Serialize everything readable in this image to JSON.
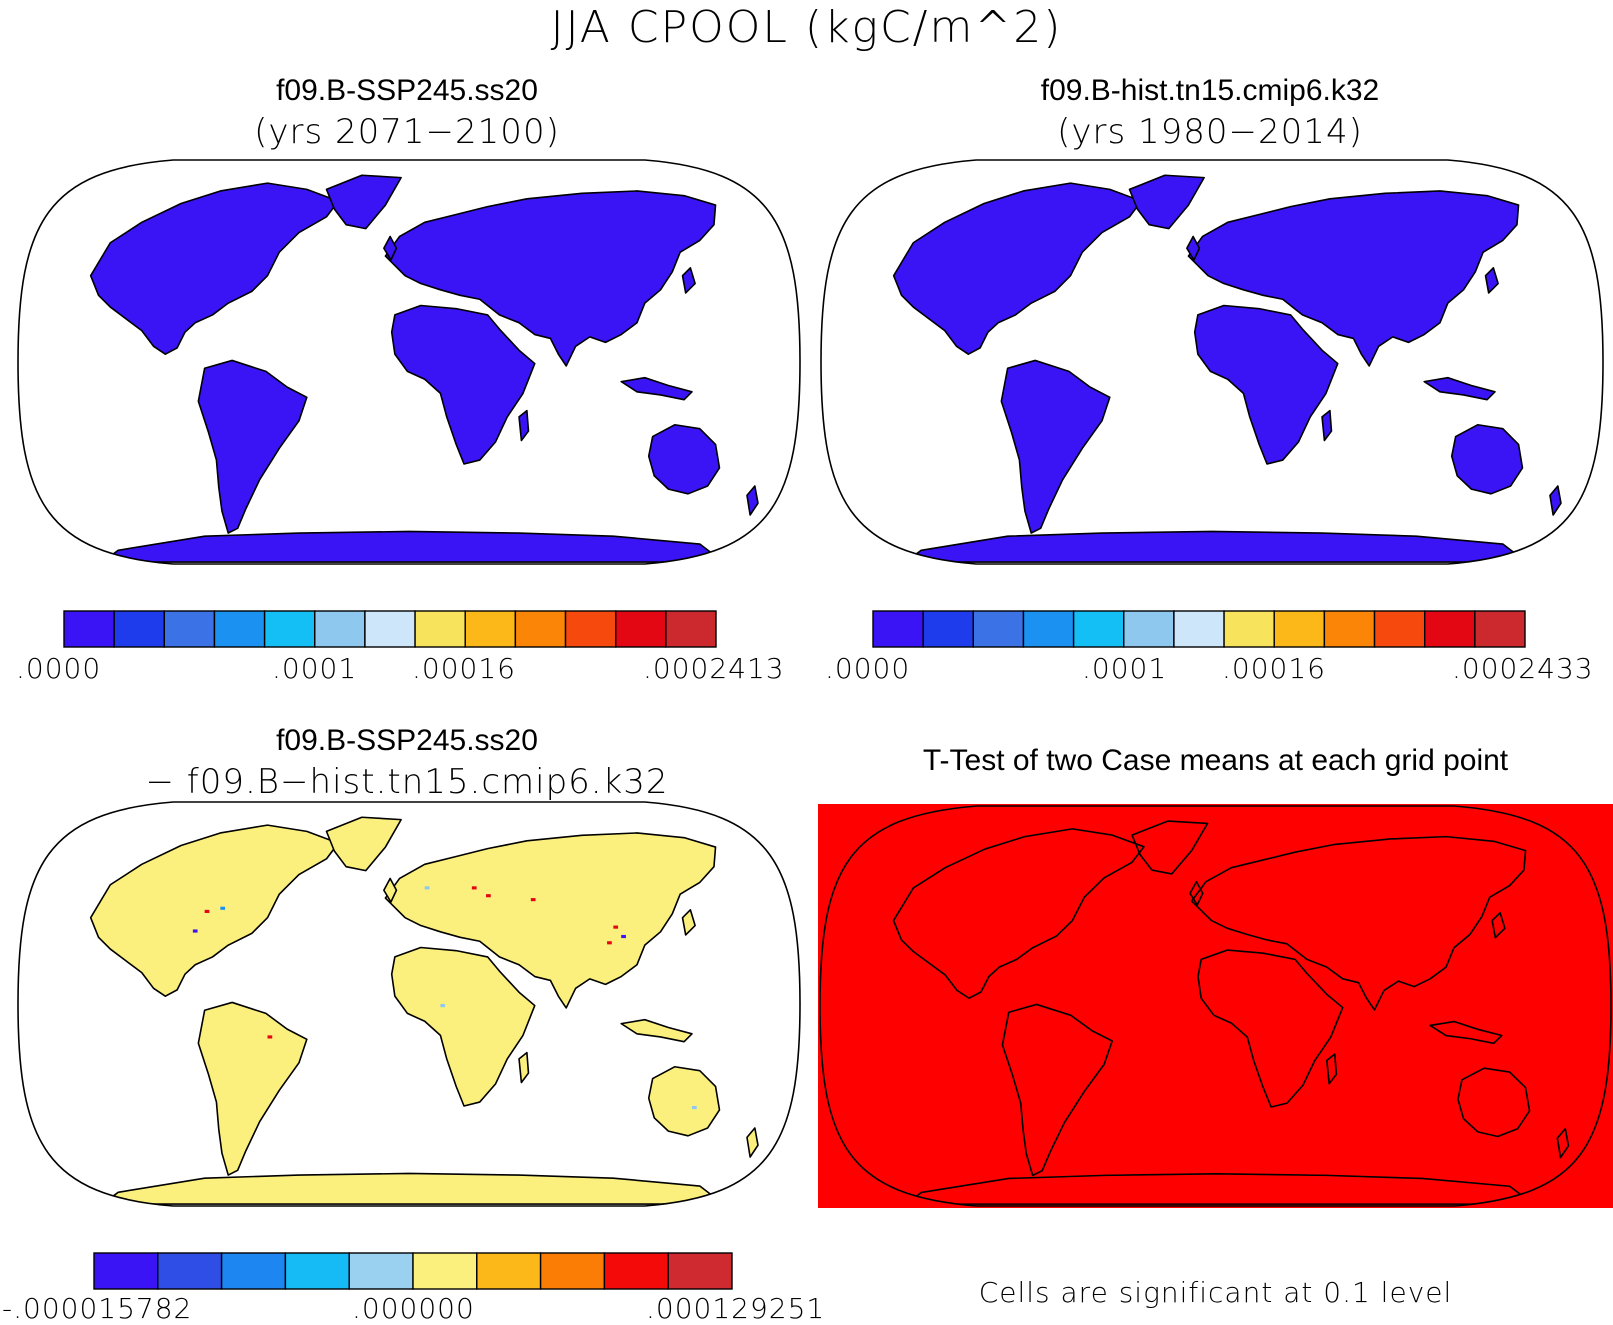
{
  "main_title": "JJA CPOOL (kgC/m^2)",
  "panels": [
    {
      "id": "tl",
      "title": "f09.B-SSP245.ss20",
      "subtitle": "(yrs 2071−2100)",
      "land_color": "#3a14f5",
      "colorbar": {
        "colors": [
          "#3a14f5",
          "#1e3ceb",
          "#3b73e6",
          "#1b91f2",
          "#14bff5",
          "#8ec8ee",
          "#cde6fa",
          "#f8e45c",
          "#fbb818",
          "#fb8506",
          "#f6490d",
          "#e30713",
          "#cc292f"
        ],
        "tick_labels": [
          ".0000",
          ".0001",
          ".00016",
          ".0002413"
        ]
      }
    },
    {
      "id": "tr",
      "title": "f09.B-hist.tn15.cmip6.k32",
      "subtitle": "(yrs 1980−2014)",
      "land_color": "#3a14f5",
      "colorbar": {
        "colors": [
          "#3a14f5",
          "#1e3ceb",
          "#3b73e6",
          "#1b91f2",
          "#14bff5",
          "#8ec8ee",
          "#cde6fa",
          "#f8e45c",
          "#fbb818",
          "#fb8506",
          "#f6490d",
          "#e30713",
          "#cc292f"
        ],
        "tick_labels": [
          ".0000",
          ".0001",
          ".00016",
          ".0002433"
        ]
      }
    },
    {
      "id": "bl",
      "title": "f09.B-SSP245.ss20",
      "subtitle": "− f09.B−hist.tn15.cmip6.k32",
      "land_color": "#fbf07e",
      "colorbar": {
        "colors": [
          "#3a14f5",
          "#2e4ee6",
          "#1e86f0",
          "#16bbf6",
          "#9ad0f0",
          "#fbf07e",
          "#fbb818",
          "#fb7d06",
          "#f50a0a",
          "#cf2a2f"
        ],
        "tick_labels": [
          "-.000015782",
          ".000000",
          ".000129251"
        ]
      }
    },
    {
      "id": "br",
      "title": "T-Test of two Case means at each grid point",
      "background_color": "#ff0000",
      "footer": "Cells are significant at 0.1 level"
    }
  ]
}
